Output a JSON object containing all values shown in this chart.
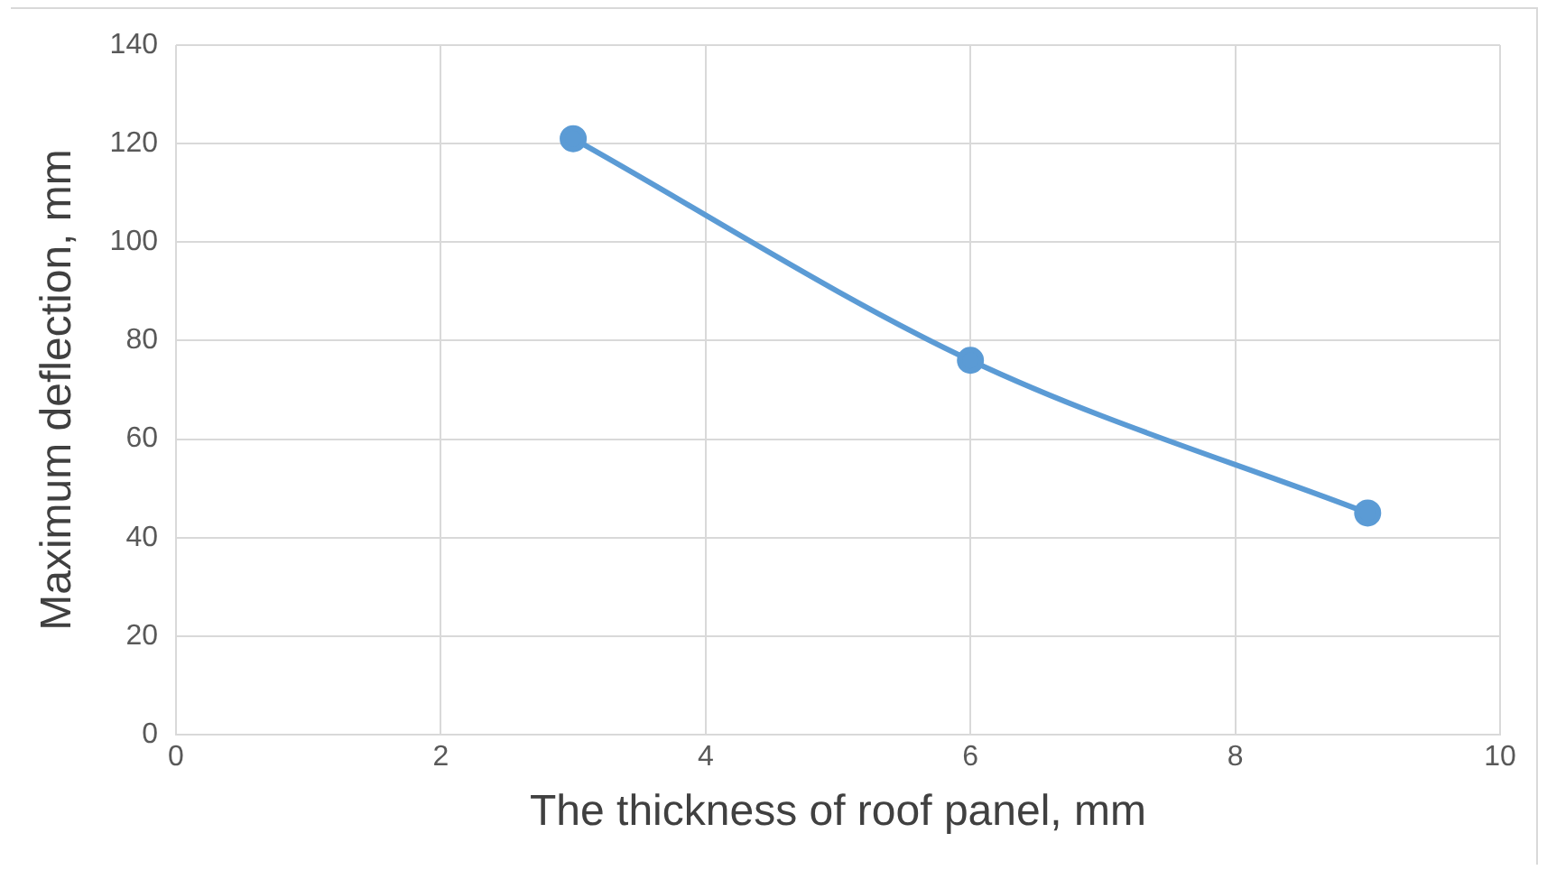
{
  "chart_data": {
    "type": "line",
    "xlabel": "The thickness of roof panel, mm",
    "ylabel": "Maximum deflection, mm",
    "x": [
      3,
      6,
      9
    ],
    "series": [
      {
        "color": "#5b9bd5",
        "values": [
          121,
          76,
          45
        ]
      }
    ],
    "xlim": [
      0,
      10
    ],
    "xticks": [
      0,
      2,
      4,
      6,
      8,
      10
    ],
    "ylim": [
      0,
      140
    ],
    "yticks": [
      0,
      20,
      40,
      60,
      80,
      100,
      120,
      140
    ],
    "grid": true,
    "legend": false,
    "marker": "circle",
    "line_style": "solid"
  }
}
